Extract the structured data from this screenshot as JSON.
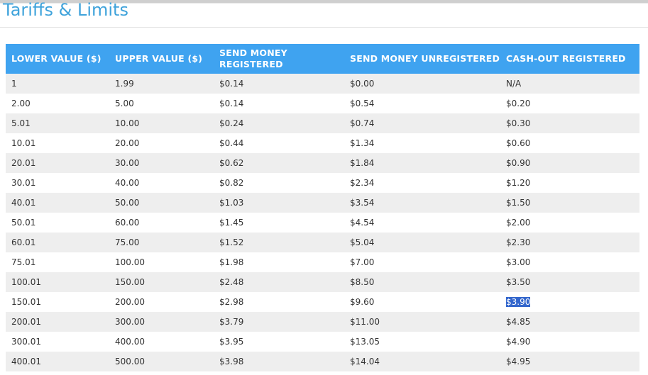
{
  "page": {
    "title": "Tariffs & Limits"
  },
  "table": {
    "headers": [
      "LOWER  VALUE ($)",
      "UPPER VALUE  ($)",
      "SEND MONEY REGISTERED",
      "SEND MONEY UNREGISTERED",
      "CASH-OUT REGISTERED"
    ],
    "rows": [
      [
        "1",
        "1.99",
        "$0.14",
        "$0.00",
        "N/A"
      ],
      [
        "2.00",
        "5.00",
        "$0.14",
        "$0.54",
        "$0.20"
      ],
      [
        "5.01",
        "10.00",
        "$0.24",
        "$0.74",
        "$0.30"
      ],
      [
        "10.01",
        "20.00",
        "$0.44",
        "$1.34",
        "$0.60"
      ],
      [
        "20.01",
        "30.00",
        "$0.62",
        "$1.84",
        "$0.90"
      ],
      [
        "30.01",
        "40.00",
        "$0.82",
        "$2.34",
        "$1.20"
      ],
      [
        "40.01",
        "50.00",
        "$1.03",
        "$3.54",
        "$1.50"
      ],
      [
        "50.01",
        "60.00",
        "$1.45",
        "$4.54",
        "$2.00"
      ],
      [
        "60.01",
        "75.00",
        "$1.52",
        "$5.04",
        "$2.30"
      ],
      [
        "75.01",
        "100.00",
        "$1.98",
        "$7.00",
        "$3.00"
      ],
      [
        "100.01",
        "150.00",
        "$2.48",
        "$8.50",
        "$3.50"
      ],
      [
        "150.01",
        "200.00",
        "$2.98",
        "$9.60",
        "$3.90"
      ],
      [
        "200.01",
        "300.00",
        "$3.79",
        "$11.00",
        "$4.85"
      ],
      [
        "300.01",
        "400.00",
        "$3.95",
        "$13.05",
        "$4.90"
      ],
      [
        "400.01",
        "500.00",
        "$3.98",
        "$14.04",
        "$4.95"
      ]
    ],
    "selected_text": "$3.90"
  },
  "colors": {
    "title": "#3fa3db",
    "header_bg": "#3fa3f0",
    "row_alt_bg": "#eeeeee",
    "selection_bg": "#3366cc"
  }
}
